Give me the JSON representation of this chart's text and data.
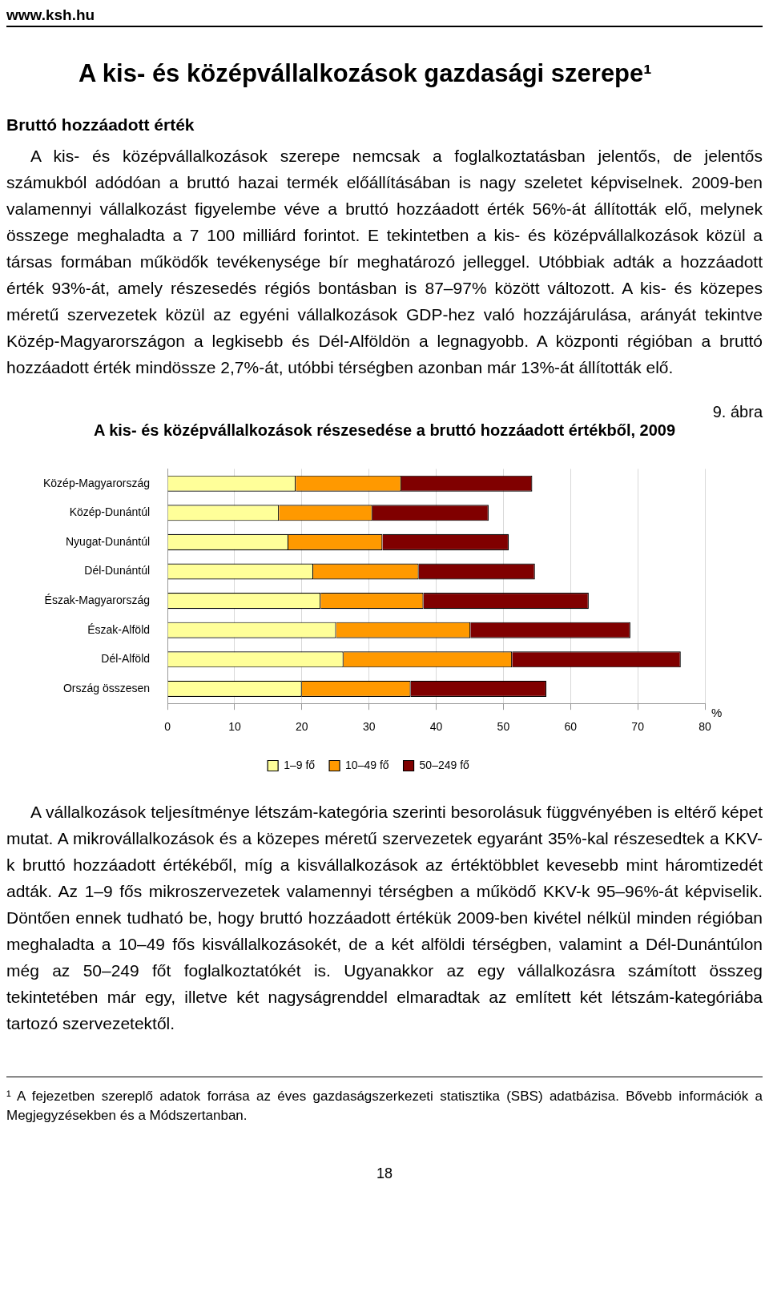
{
  "chart_data": {
    "type": "bar",
    "orientation": "horizontal",
    "stacked": true,
    "title": "A kis- és középvállalkozások részesedése a bruttó hozzáadott értékből, 2009",
    "xlabel": "%",
    "categories": [
      "Közép-Magyarország",
      "Közép-Dunántúl",
      "Nyugat-Dunántúl",
      "Dél-Dunántúl",
      "Észak-Magyarország",
      "Észak-Alföld",
      "Dél-Alföld",
      "Ország összesen"
    ],
    "series": [
      {
        "name": "1–9 fő",
        "color": "#ffff99",
        "values": [
          19.1,
          16.6,
          18.0,
          21.7,
          22.8,
          25.1,
          26.2,
          20.0
        ]
      },
      {
        "name": "10–49 fő",
        "color": "#ff9900",
        "values": [
          15.7,
          13.9,
          14.0,
          15.7,
          15.3,
          20.0,
          25.1,
          16.2
        ]
      },
      {
        "name": "50–249 fő",
        "color": "#800000",
        "values": [
          19.5,
          17.3,
          18.8,
          17.3,
          24.6,
          23.8,
          25.1,
          20.2
        ]
      }
    ],
    "xlim": [
      0,
      80
    ],
    "xticks": [
      0,
      10,
      20,
      30,
      40,
      50,
      60,
      70,
      80
    ],
    "grid": "x",
    "legend": "bottom",
    "annotations": [
      "www.ksh.hu",
      "A kis- és középvállalkozások gazdasági szerepe¹",
      "Bruttó hozzáadott érték",
      "A kis- és középvállalkozások szerepe nemcsak a foglalkoztatásban jelentős, de jelentős számukból adódóan a bruttó hazai termék előállításában is nagy szeletet képviselnek. 2009-ben valamennyi vállalkozást figyelembe véve a bruttó hozzáadott érték 56%-át állították elő, melynek összege meghaladta a 7 100 milliárd forintot. E tekintetben a kis- és középvállalkozások közül a társas formában működők tevékenysége bír meghatározó jelleggel. Utóbbiak adták a hozzáadott érték 93%-át, amely részesedés régiós bontásban is 87–97% között változott. A kis- és közepes méretű szervezetek közül az egyéni vállalkozások GDP-hez való hozzájárulása, arányát tekintve Közép-Magyarországon a legkisebb és Dél-Alföldön a legnagyobb. A központi régióban a bruttó hozzáadott érték mindössze 2,7%-át, utóbbi térségben azonban már 13%-át állították elő.",
      "9. ábra",
      "A vállalkozások teljesítménye létszám-kategória szerinti besorolásuk függvényében is eltérő képet mutat. A mikrovállalkozások és a közepes méretű szervezetek egyaránt 35%-kal részesedtek a KKV-k bruttó hozzáadott értékéből, míg a kisvállalkozások az értéktöbblet kevesebb mint háromtizedét adták. Az 1–9 fős mikroszervezetek valamennyi térségben a működő KKV-k 95–96%-át képviselik. Döntően ennek tudható be, hogy bruttó hozzáadott értékük 2009-ben kivétel nélkül minden régióban meghaladta a 10–49 fős kisvállalkozásokét, de a két alföldi térségben, valamint a Dél-Dunántúlon még az 50–249 főt foglalkoztatókét is. Ugyanakkor az egy vállalkozásra számított összeg tekintetében már egy, illetve két nagyságrenddel elmaradtak az említett két létszám-kategóriába tartozó szervezetektől.",
      "¹ A fejezetben szereplő adatok forrása az éves gazdaságszerkezeti statisztika (SBS) adatbázisa. Bővebb információk a Megjegyzésekben és a Módszertanban.",
      "18"
    ]
  }
}
